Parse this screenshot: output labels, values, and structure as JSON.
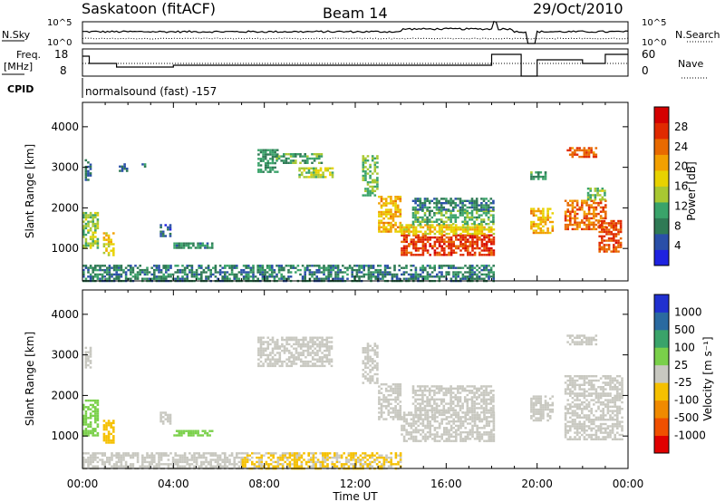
{
  "header": {
    "station": "Saskatoon (fitACF)",
    "beam": "Beam 14",
    "date": "29/Oct/2010"
  },
  "noise_panel": {
    "left_label": "N.Sky",
    "left_ticks": [
      "10^5",
      "10^0"
    ],
    "right_ticks": [
      "10^5",
      "10^0"
    ],
    "right_label": "N.Search"
  },
  "freq_panel": {
    "left_label_1": "Freq.",
    "left_label_2": "[MHz]",
    "left_ticks": [
      "18",
      "8"
    ],
    "right_ticks": [
      "60",
      "0"
    ],
    "right_label": "Nave"
  },
  "cpid": {
    "label": "CPID",
    "value": "normalsound (fast) -157"
  },
  "x_axis": {
    "ticks": [
      "00:00",
      "04:00",
      "08:00",
      "12:00",
      "16:00",
      "20:00",
      "00:00"
    ],
    "label": "Time UT"
  },
  "chart_data": [
    {
      "type": "heatmap",
      "quantity": "power",
      "ylabel": "Slant Range [km]",
      "yticks": [
        1000,
        2000,
        3000,
        4000
      ],
      "ylim": [
        200,
        4600
      ],
      "xlim_hours": [
        0,
        24
      ],
      "colorbar": {
        "label": "Power [dB]",
        "ticks": [
          "4",
          "8",
          "12",
          "16",
          "20",
          "24",
          "28"
        ],
        "range": [
          0,
          32
        ],
        "colors": [
          "#1e22e0",
          "#2a4fa8",
          "#2f7a55",
          "#3aa36a",
          "#a8c832",
          "#e8d200",
          "#f2a000",
          "#e86a00",
          "#e02a00",
          "#d40000"
        ]
      },
      "echo_regions": [
        {
          "t": [
            0.0,
            0.7
          ],
          "r": [
            1000,
            1900
          ],
          "level": 14
        },
        {
          "t": [
            0.1,
            0.4
          ],
          "r": [
            2700,
            3200
          ],
          "level": 7
        },
        {
          "t": [
            0.9,
            1.4
          ],
          "r": [
            850,
            1400
          ],
          "level": 18
        },
        {
          "t": [
            1.6,
            2.0
          ],
          "r": [
            2900,
            3100
          ],
          "level": 6
        },
        {
          "t": [
            2.6,
            2.8
          ],
          "r": [
            2950,
            3100
          ],
          "level": 7
        },
        {
          "t": [
            3.4,
            3.9
          ],
          "r": [
            1300,
            1600
          ],
          "level": 6
        },
        {
          "t": [
            4.0,
            5.7
          ],
          "r": [
            1000,
            1150
          ],
          "level": 9
        },
        {
          "t": [
            7.7,
            8.6
          ],
          "r": [
            2900,
            3450
          ],
          "level": 10
        },
        {
          "t": [
            8.5,
            10.5
          ],
          "r": [
            3100,
            3350
          ],
          "level": 11
        },
        {
          "t": [
            9.5,
            11.0
          ],
          "r": [
            2750,
            3000
          ],
          "level": 15
        },
        {
          "t": [
            12.3,
            13.0
          ],
          "r": [
            2300,
            3300
          ],
          "level": 13
        },
        {
          "t": [
            13.0,
            14.0
          ],
          "r": [
            1400,
            2300
          ],
          "level": 20
        },
        {
          "t": [
            14.0,
            18.1
          ],
          "r": [
            850,
            1350
          ],
          "level": 27
        },
        {
          "t": [
            14.0,
            18.1
          ],
          "r": [
            1350,
            1600
          ],
          "level": 18
        },
        {
          "t": [
            14.5,
            18.1
          ],
          "r": [
            1600,
            1950
          ],
          "level": 12
        },
        {
          "t": [
            14.5,
            18.1
          ],
          "r": [
            1950,
            2250
          ],
          "level": 8
        },
        {
          "t": [
            19.7,
            20.7
          ],
          "r": [
            1400,
            2000
          ],
          "level": 20
        },
        {
          "t": [
            19.7,
            20.4
          ],
          "r": [
            2700,
            2900
          ],
          "level": 10
        },
        {
          "t": [
            21.2,
            23.0
          ],
          "r": [
            1500,
            2200
          ],
          "level": 24
        },
        {
          "t": [
            22.2,
            23.0
          ],
          "r": [
            2200,
            2500
          ],
          "level": 14
        },
        {
          "t": [
            21.3,
            22.6
          ],
          "r": [
            3250,
            3500
          ],
          "level": 25
        },
        {
          "t": [
            22.7,
            23.7
          ],
          "r": [
            900,
            1700
          ],
          "level": 26
        },
        {
          "t": [
            0.0,
            18.1
          ],
          "r": [
            200,
            600
          ],
          "level": 8
        }
      ]
    },
    {
      "type": "heatmap",
      "quantity": "velocity",
      "ylabel": "Slant Range [km]",
      "yticks": [
        1000,
        2000,
        3000,
        4000
      ],
      "ylim": [
        200,
        4600
      ],
      "xlim_hours": [
        0,
        24
      ],
      "colorbar": {
        "label": "Velocity [m s⁻¹]",
        "ticks": [
          "1000",
          "500",
          "100",
          "25",
          "-25",
          "-100",
          "-500",
          "-1000"
        ],
        "range": [
          -1200,
          1200
        ],
        "colors": [
          "#e00000",
          "#f05000",
          "#f08a00",
          "#f5c000",
          "#c8c8c0",
          "#7ad04a",
          "#3aa36a",
          "#2a6aa0",
          "#2030d0"
        ]
      },
      "echo_regions": [
        {
          "t": [
            0.0,
            0.7
          ],
          "r": [
            1000,
            1900
          ],
          "level": 300
        },
        {
          "t": [
            0.1,
            0.4
          ],
          "r": [
            2700,
            3200
          ],
          "level": 0
        },
        {
          "t": [
            0.9,
            1.4
          ],
          "r": [
            850,
            1400
          ],
          "level": -300
        },
        {
          "t": [
            4.0,
            5.7
          ],
          "r": [
            1000,
            1150
          ],
          "level": 200
        },
        {
          "t": [
            3.4,
            3.9
          ],
          "r": [
            1300,
            1600
          ],
          "level": 0
        },
        {
          "t": [
            7.7,
            11.0
          ],
          "r": [
            2750,
            3450
          ],
          "level": 0
        },
        {
          "t": [
            12.3,
            13.0
          ],
          "r": [
            2300,
            3300
          ],
          "level": 50
        },
        {
          "t": [
            13.0,
            14.0
          ],
          "r": [
            1400,
            2300
          ],
          "level": 0
        },
        {
          "t": [
            14.0,
            18.1
          ],
          "r": [
            850,
            1600
          ],
          "level": 0
        },
        {
          "t": [
            14.5,
            18.1
          ],
          "r": [
            1600,
            2250
          ],
          "level": 0
        },
        {
          "t": [
            19.7,
            20.7
          ],
          "r": [
            1400,
            2000
          ],
          "level": 0
        },
        {
          "t": [
            21.2,
            23.7
          ],
          "r": [
            900,
            2500
          ],
          "level": 0
        },
        {
          "t": [
            21.3,
            22.6
          ],
          "r": [
            3250,
            3500
          ],
          "level": 0
        },
        {
          "t": [
            0.0,
            7.0
          ],
          "r": [
            200,
            600
          ],
          "level": 60
        },
        {
          "t": [
            7.0,
            14.0
          ],
          "r": [
            200,
            600
          ],
          "level": -150
        }
      ]
    }
  ]
}
